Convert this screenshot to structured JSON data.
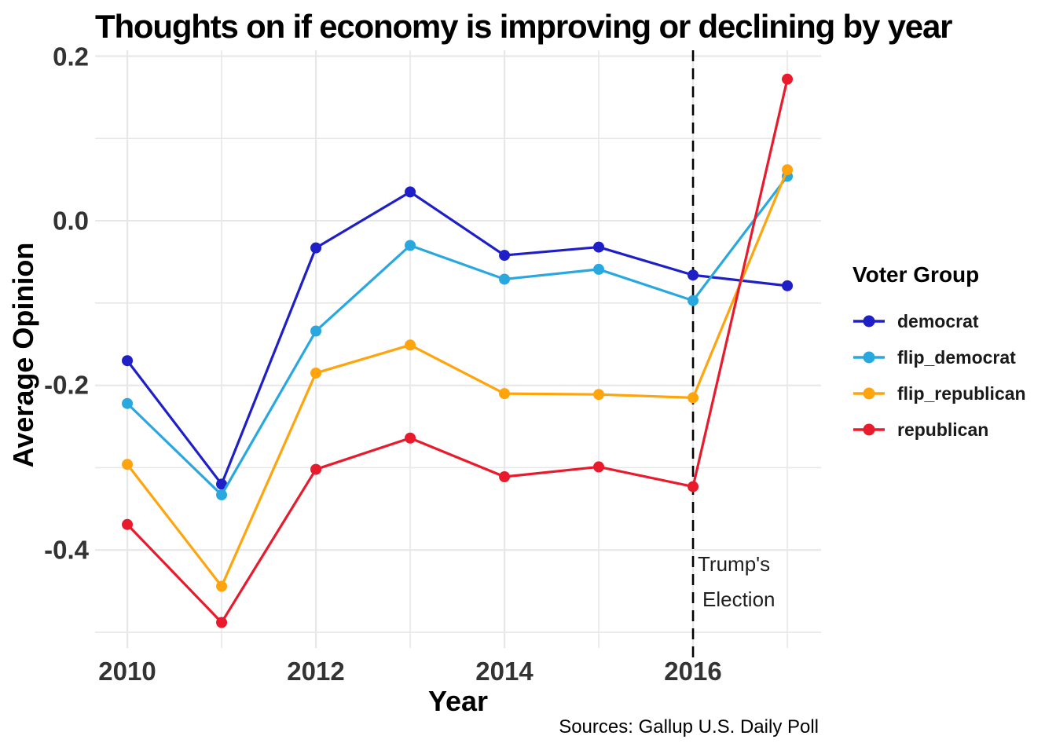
{
  "header": {
    "title": "Thoughts on if economy is improving or declining by year"
  },
  "axes": {
    "x_label": "Year",
    "y_label": "Average Opinion",
    "x_tick_labels": [
      "2010",
      "2012",
      "2014",
      "2016"
    ],
    "y_tick_labels": [
      "0.2",
      "0.0",
      "-0.2",
      "-0.4"
    ]
  },
  "legend": {
    "title": "Voter Group",
    "items": [
      {
        "label": "democrat",
        "color": "#1F1FC8"
      },
      {
        "label": "flip_democrat",
        "color": "#29A8E0"
      },
      {
        "label": "flip_republican",
        "color": "#FFA40D"
      },
      {
        "label": "republican",
        "color": "#E81A2C"
      }
    ]
  },
  "annotation": {
    "line1": "Trump's",
    "line2": "Election",
    "at_x": 2016
  },
  "caption": {
    "text": "Sources: Gallup U.S. Daily Poll"
  },
  "chart_data": {
    "type": "line",
    "title": "Thoughts on if economy is improving or declining by year",
    "xlabel": "Year",
    "ylabel": "Average Opinion",
    "x": [
      2010,
      2011,
      2012,
      2013,
      2014,
      2015,
      2016,
      2017
    ],
    "series": [
      {
        "name": "democrat",
        "color": "#1F1FC8",
        "values": [
          -0.17,
          -0.32,
          -0.033,
          0.035,
          -0.042,
          -0.032,
          -0.066,
          -0.079
        ]
      },
      {
        "name": "flip_democrat",
        "color": "#29A8E0",
        "values": [
          -0.222,
          -0.333,
          -0.134,
          -0.03,
          -0.071,
          -0.059,
          -0.097,
          0.054
        ]
      },
      {
        "name": "flip_republican",
        "color": "#FFA40D",
        "values": [
          -0.296,
          -0.444,
          -0.185,
          -0.151,
          -0.21,
          -0.211,
          -0.215,
          0.062
        ]
      },
      {
        "name": "republican",
        "color": "#E81A2C",
        "values": [
          -0.369,
          -0.488,
          -0.302,
          -0.264,
          -0.311,
          -0.299,
          -0.323,
          0.172
        ]
      }
    ],
    "xlim": [
      2009.658,
      2017.358
    ],
    "ylim": [
      -0.519,
      0.2071
    ],
    "x_major_gridlines": [
      2010,
      2012,
      2014,
      2016
    ],
    "x_minor_gridlines": [
      2011,
      2013,
      2015,
      2017
    ],
    "y_major_gridlines": [
      0.2,
      0.0,
      -0.2,
      -0.4
    ],
    "y_minor_gridlines": [
      0.1,
      -0.1,
      -0.3,
      -0.5
    ],
    "grid": true,
    "grid_color": "#E7E7E7",
    "vline": {
      "x": 2016,
      "style": "dashed",
      "color": "#000000",
      "label": "Trump's Election"
    },
    "legend_position": "right"
  }
}
